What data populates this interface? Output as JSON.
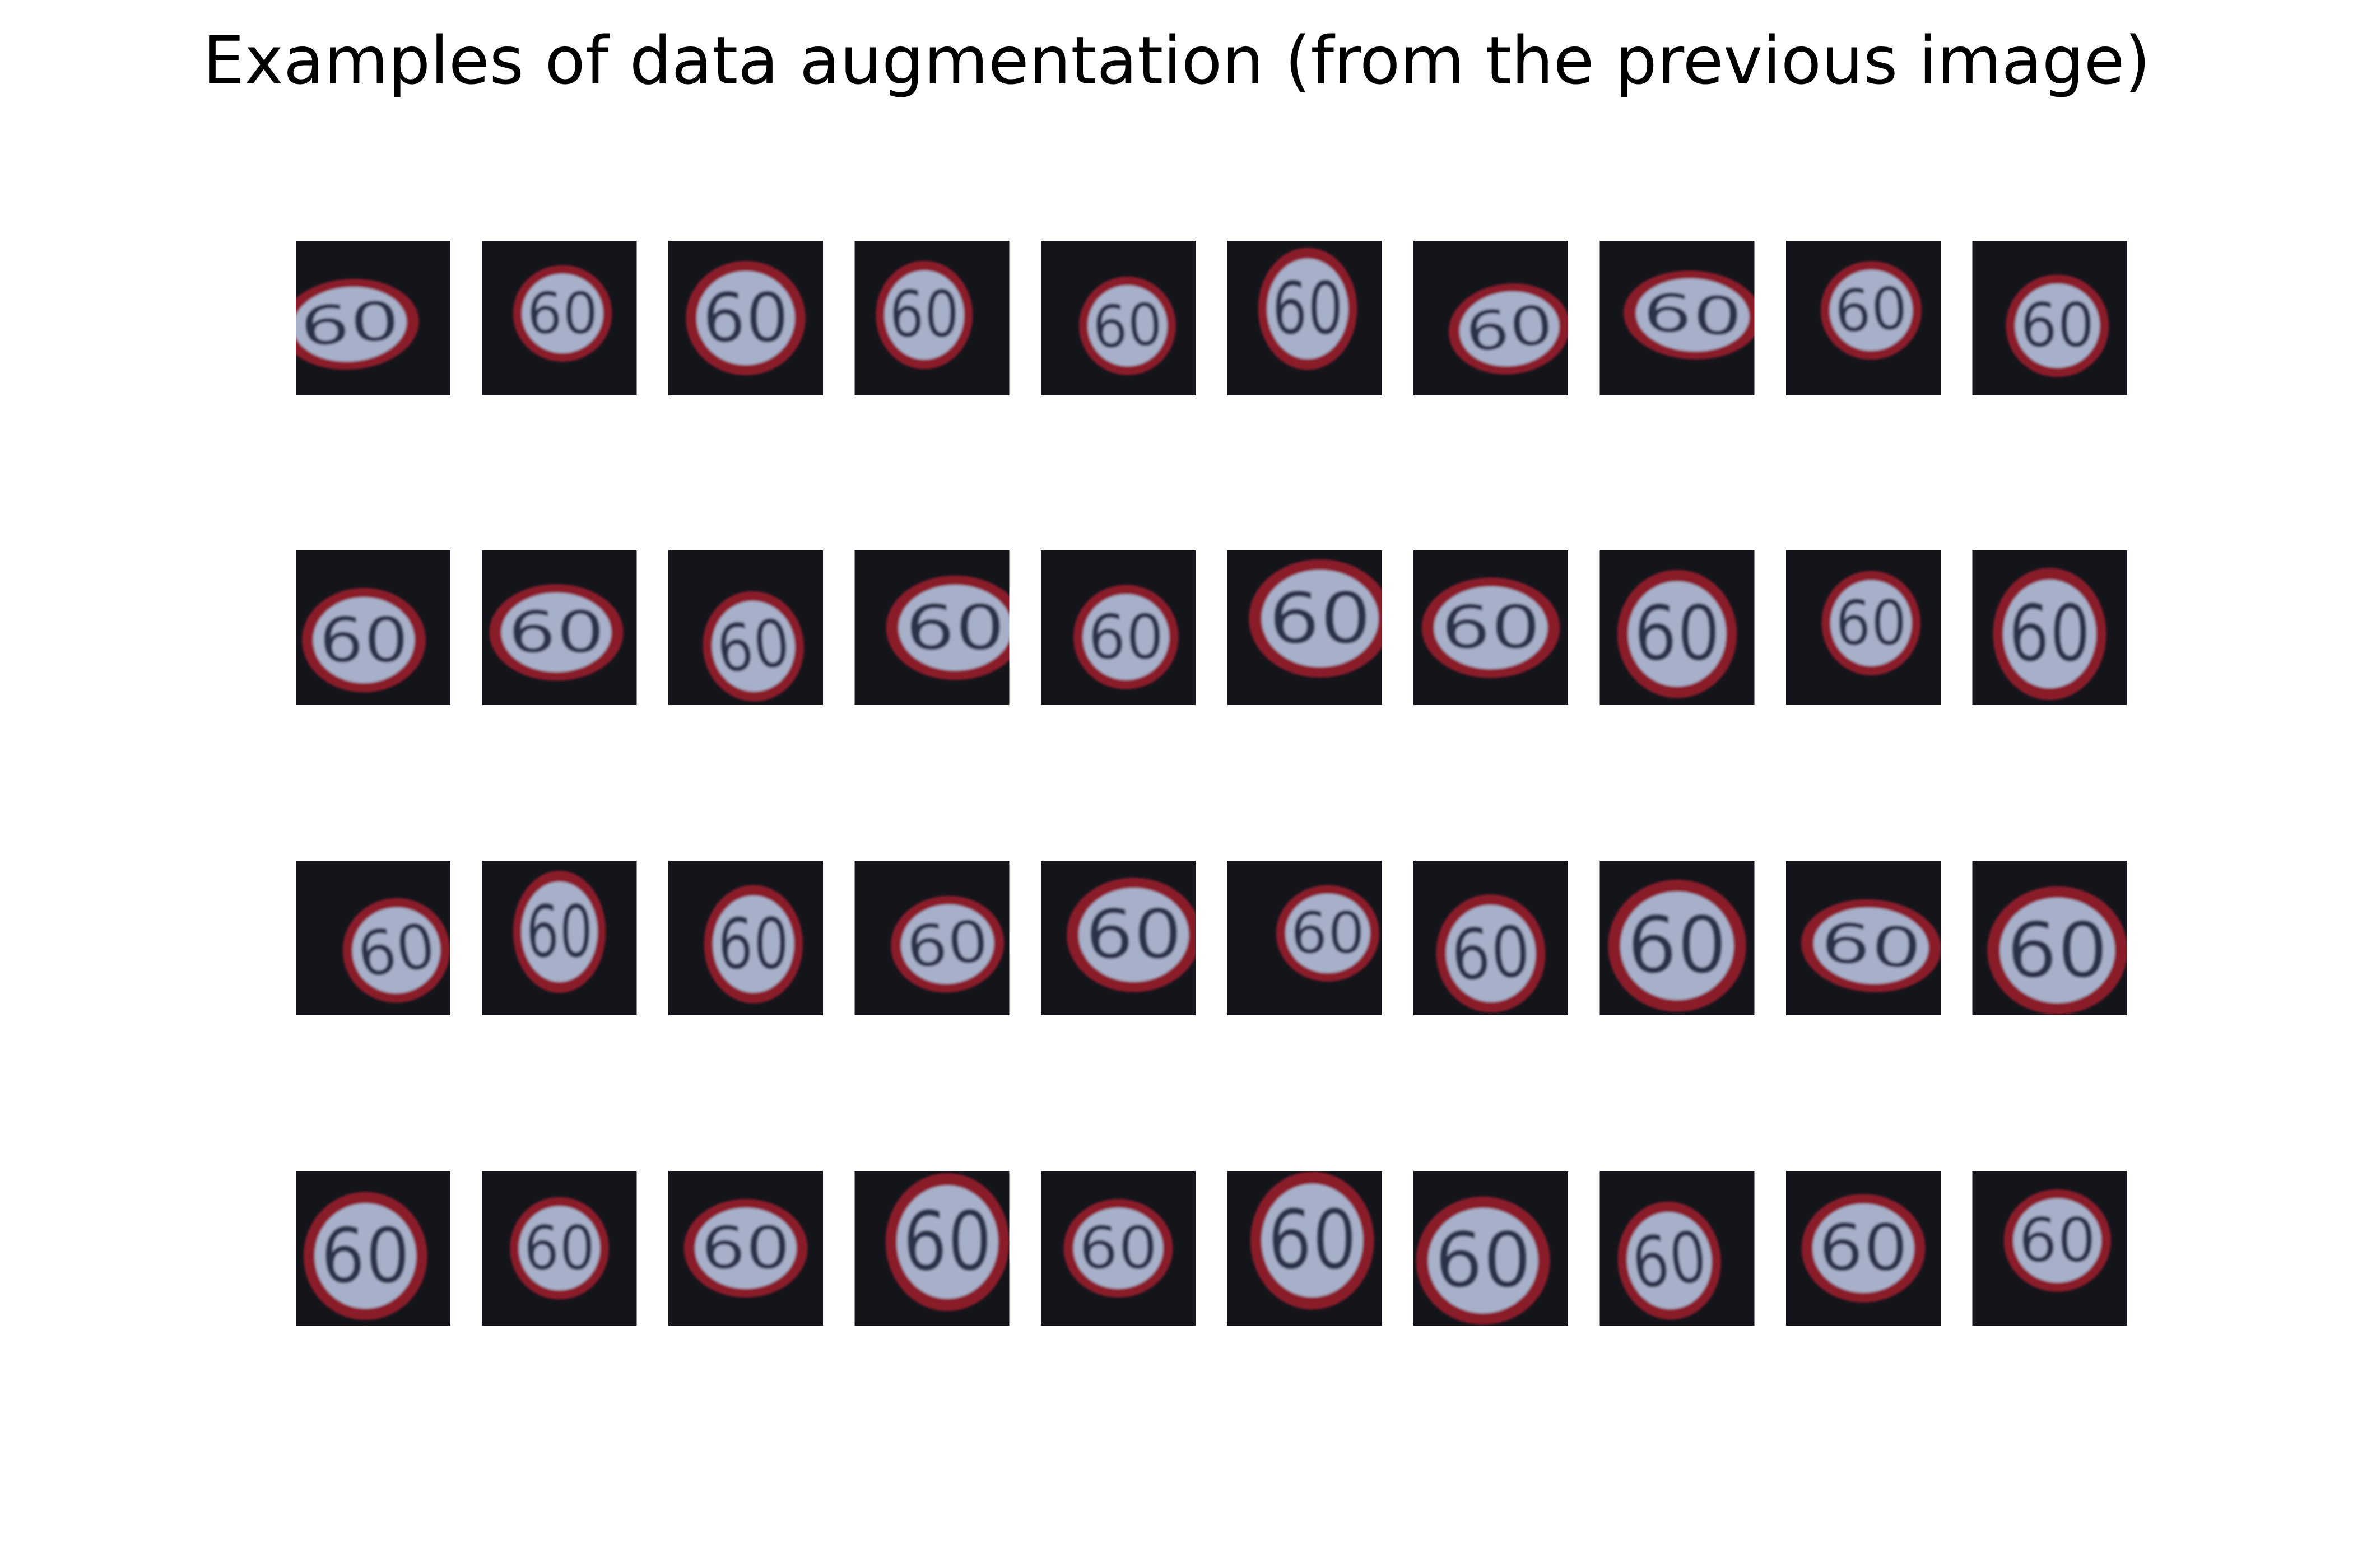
{
  "title": "Examples of data augmentation (from the previous image)",
  "grid": {
    "rows": 4,
    "cols": 10
  },
  "sign_text": "60",
  "colors": {
    "background": "#ffffff",
    "thumb_background": "#14151b",
    "sign_face": "#a7b0c9",
    "sign_ring": "#8a1c2c",
    "sign_digits": "#2c3348"
  },
  "samples": [
    {
      "dx": -0.15,
      "dy": 0.04,
      "sx": 1.34,
      "sy": 0.92,
      "rot": -4
    },
    {
      "dx": 0.02,
      "dy": -0.03,
      "sx": 0.96,
      "sy": 0.98,
      "rot": 0
    },
    {
      "dx": 0.0,
      "dy": 0.0,
      "sx": 1.16,
      "sy": 1.16,
      "rot": 0
    },
    {
      "dx": -0.05,
      "dy": -0.02,
      "sx": 0.94,
      "sy": 1.1,
      "rot": 0
    },
    {
      "dx": 0.06,
      "dy": 0.05,
      "sx": 0.94,
      "sy": 1.0,
      "rot": -3
    },
    {
      "dx": 0.02,
      "dy": -0.06,
      "sx": 0.96,
      "sy": 1.24,
      "rot": 0
    },
    {
      "dx": 0.12,
      "dy": 0.07,
      "sx": 1.18,
      "sy": 0.92,
      "rot": -6
    },
    {
      "dx": 0.1,
      "dy": -0.02,
      "sx": 1.34,
      "sy": 0.9,
      "rot": 3
    },
    {
      "dx": 0.05,
      "dy": -0.05,
      "sx": 0.98,
      "sy": 1.0,
      "rot": -3
    },
    {
      "dx": 0.05,
      "dy": 0.05,
      "sx": 1.0,
      "sy": 1.04,
      "rot": 0
    },
    {
      "dx": -0.06,
      "dy": 0.08,
      "sx": 1.2,
      "sy": 1.06,
      "rot": 0
    },
    {
      "dx": -0.02,
      "dy": 0.03,
      "sx": 1.3,
      "sy": 0.98,
      "rot": 0
    },
    {
      "dx": 0.05,
      "dy": 0.12,
      "sx": 0.98,
      "sy": 1.12,
      "rot": -6
    },
    {
      "dx": 0.15,
      "dy": 0.0,
      "sx": 1.34,
      "sy": 1.06,
      "rot": 0
    },
    {
      "dx": 0.05,
      "dy": 0.06,
      "sx": 1.02,
      "sy": 1.06,
      "rot": 0
    },
    {
      "dx": 0.1,
      "dy": -0.06,
      "sx": 1.38,
      "sy": 1.2,
      "rot": 0
    },
    {
      "dx": 0.0,
      "dy": 0.0,
      "sx": 1.34,
      "sy": 1.02,
      "rot": 0
    },
    {
      "dx": 0.0,
      "dy": 0.04,
      "sx": 1.16,
      "sy": 1.3,
      "rot": 0
    },
    {
      "dx": 0.05,
      "dy": -0.03,
      "sx": 0.96,
      "sy": 1.06,
      "rot": 0
    },
    {
      "dx": 0.0,
      "dy": 0.04,
      "sx": 1.1,
      "sy": 1.34,
      "rot": 0
    },
    {
      "dx": 0.15,
      "dy": 0.08,
      "sx": 1.04,
      "sy": 1.06,
      "rot": -8
    },
    {
      "dx": 0.0,
      "dy": -0.04,
      "sx": 0.9,
      "sy": 1.24,
      "rot": 0
    },
    {
      "dx": 0.05,
      "dy": 0.04,
      "sx": 0.96,
      "sy": 1.2,
      "rot": 0
    },
    {
      "dx": 0.1,
      "dy": 0.04,
      "sx": 1.1,
      "sy": 0.98,
      "rot": -5
    },
    {
      "dx": 0.1,
      "dy": -0.02,
      "sx": 1.3,
      "sy": 1.16,
      "rot": 0
    },
    {
      "dx": 0.15,
      "dy": -0.03,
      "sx": 1.0,
      "sy": 0.98,
      "rot": 0
    },
    {
      "dx": 0.0,
      "dy": 0.1,
      "sx": 1.06,
      "sy": 1.2,
      "rot": -3
    },
    {
      "dx": 0.0,
      "dy": 0.05,
      "sx": 1.34,
      "sy": 1.34,
      "rot": 0
    },
    {
      "dx": 0.05,
      "dy": 0.05,
      "sx": 1.36,
      "sy": 0.94,
      "rot": 4
    },
    {
      "dx": 0.05,
      "dy": 0.08,
      "sx": 1.36,
      "sy": 1.3,
      "rot": 0
    },
    {
      "dx": -0.05,
      "dy": 0.05,
      "sx": 1.2,
      "sy": 1.3,
      "rot": 0
    },
    {
      "dx": 0.0,
      "dy": 0.0,
      "sx": 0.96,
      "sy": 1.04,
      "rot": 0
    },
    {
      "dx": 0.0,
      "dy": 0.0,
      "sx": 1.2,
      "sy": 1.0,
      "rot": 0
    },
    {
      "dx": 0.1,
      "dy": -0.04,
      "sx": 1.2,
      "sy": 1.4,
      "rot": 0
    },
    {
      "dx": 0.0,
      "dy": 0.0,
      "sx": 1.06,
      "sy": 1.0,
      "rot": 0
    },
    {
      "dx": 0.05,
      "dy": -0.05,
      "sx": 1.2,
      "sy": 1.4,
      "rot": 0
    },
    {
      "dx": -0.05,
      "dy": 0.08,
      "sx": 1.3,
      "sy": 1.3,
      "rot": 0
    },
    {
      "dx": -0.05,
      "dy": 0.08,
      "sx": 1.0,
      "sy": 1.2,
      "rot": -6
    },
    {
      "dx": 0.0,
      "dy": 0.0,
      "sx": 1.2,
      "sy": 1.1,
      "rot": 0
    },
    {
      "dx": 0.05,
      "dy": -0.05,
      "sx": 1.04,
      "sy": 1.04,
      "rot": 0
    }
  ]
}
